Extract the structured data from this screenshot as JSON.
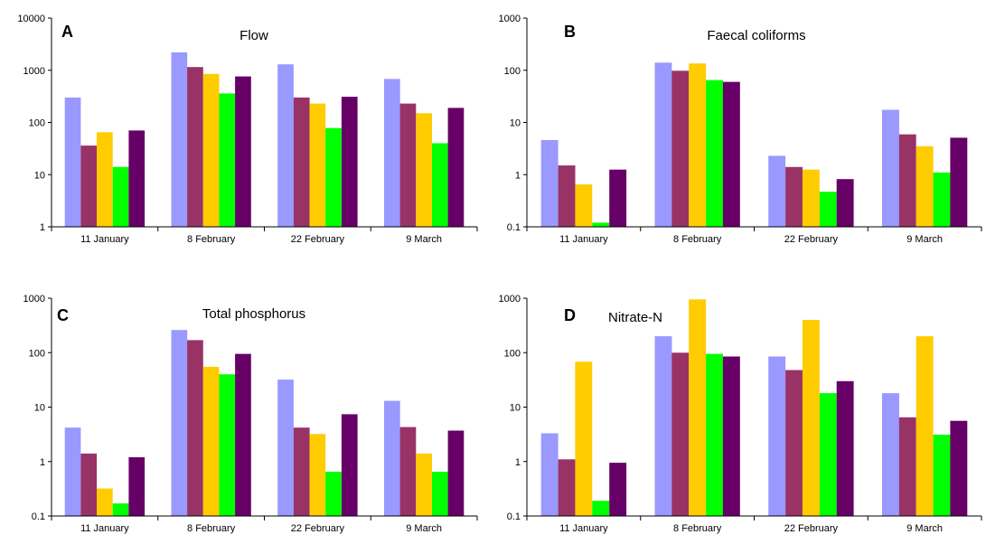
{
  "colors": {
    "series": [
      "#9999ff",
      "#993366",
      "#ffcc00",
      "#00ff00",
      "#660066"
    ],
    "axis": "#000000"
  },
  "chart_data": [
    {
      "type": "bar",
      "letter": "A",
      "title": "Flow",
      "yscale": "log",
      "ylim": [
        1,
        10000
      ],
      "yticks": [
        "1",
        "10",
        "100",
        "1000",
        "10000"
      ],
      "categories": [
        "11 January",
        "8 February",
        "22 February",
        "9 March"
      ],
      "series": [
        {
          "values": [
            300,
            2200,
            1300,
            680
          ]
        },
        {
          "values": [
            36,
            1150,
            300,
            230
          ]
        },
        {
          "values": [
            65,
            850,
            230,
            150
          ]
        },
        {
          "values": [
            14,
            360,
            78,
            40
          ]
        },
        {
          "values": [
            70,
            760,
            310,
            190
          ]
        }
      ]
    },
    {
      "type": "bar",
      "letter": "B",
      "title": "Faecal coliforms",
      "yscale": "log",
      "ylim": [
        0.1,
        1000
      ],
      "yticks": [
        "0.1",
        "1",
        "10",
        "100",
        "1000"
      ],
      "categories": [
        "11 January",
        "8 February",
        "22 February",
        "9 March"
      ],
      "series": [
        {
          "values": [
            4.6,
            140,
            2.3,
            17.5
          ]
        },
        {
          "values": [
            1.5,
            98,
            1.4,
            5.9
          ]
        },
        {
          "values": [
            0.65,
            135,
            1.25,
            3.5
          ]
        },
        {
          "values": [
            0.12,
            65,
            0.47,
            1.1
          ]
        },
        {
          "values": [
            1.25,
            60,
            0.82,
            5.1
          ]
        }
      ]
    },
    {
      "type": "bar",
      "letter": "C",
      "title": "Total phosphorus",
      "yscale": "log",
      "ylim": [
        0.1,
        1000
      ],
      "yticks": [
        "0.1",
        "1",
        "10",
        "100",
        "1000"
      ],
      "categories": [
        "11 January",
        "8 February",
        "22 February",
        "9 March"
      ],
      "series": [
        {
          "values": [
            4.2,
            260,
            32,
            13
          ]
        },
        {
          "values": [
            1.4,
            170,
            4.2,
            4.3
          ]
        },
        {
          "values": [
            0.32,
            55,
            3.2,
            1.4
          ]
        },
        {
          "values": [
            0.17,
            40,
            0.65,
            0.65
          ]
        },
        {
          "values": [
            1.2,
            95,
            7.4,
            3.7
          ]
        }
      ]
    },
    {
      "type": "bar",
      "letter": "D",
      "title": "Nitrate-N",
      "yscale": "log",
      "ylim": [
        0.1,
        1000
      ],
      "yticks": [
        "0.1",
        "1",
        "10",
        "100",
        "1000"
      ],
      "categories": [
        "11 January",
        "8 February",
        "22 February",
        "9 March"
      ],
      "series": [
        {
          "values": [
            3.3,
            200,
            85,
            18
          ]
        },
        {
          "values": [
            1.1,
            100,
            48,
            6.5
          ]
        },
        {
          "values": [
            68,
            950,
            400,
            200
          ]
        },
        {
          "values": [
            0.19,
            95,
            18,
            3.1
          ]
        },
        {
          "values": [
            0.95,
            85,
            30,
            5.6
          ]
        }
      ]
    }
  ]
}
